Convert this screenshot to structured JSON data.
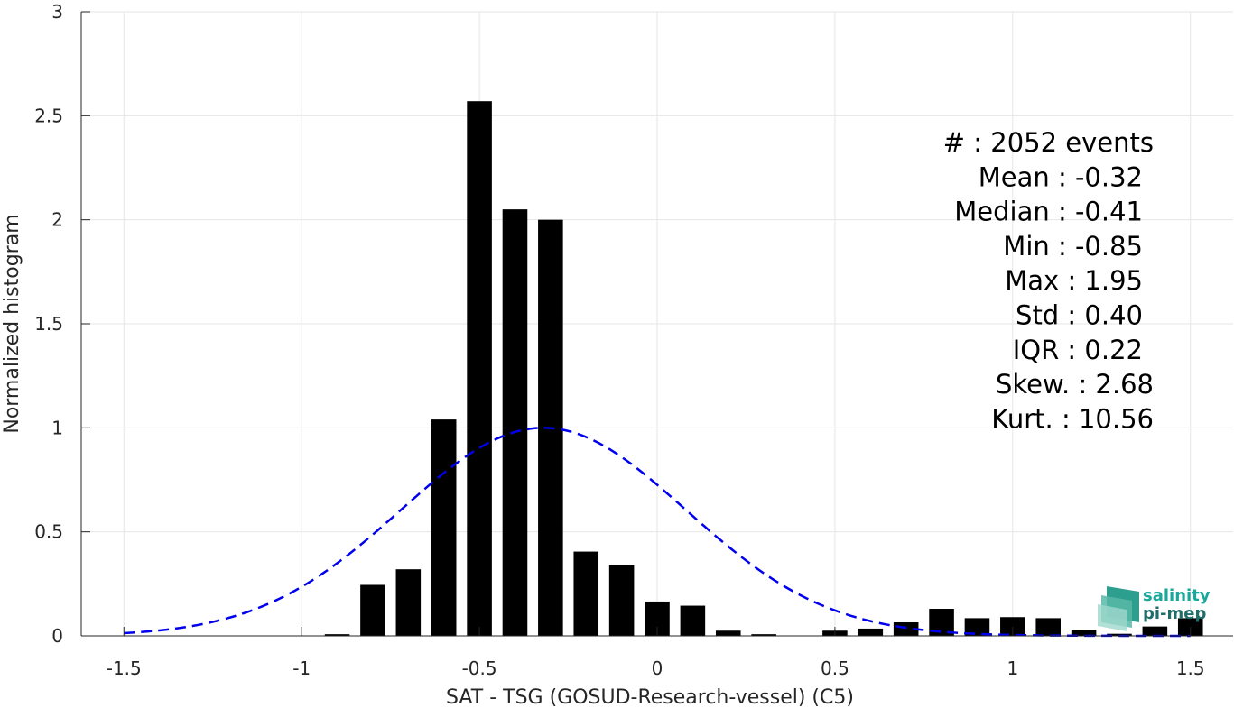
{
  "chart_data": {
    "type": "bar",
    "xlabel": "SAT - TSG (GOSUD-Research-vessel) (C5)",
    "ylabel": "Normalized histogram",
    "xlim": [
      -1.62,
      1.62
    ],
    "ylim": [
      0,
      3
    ],
    "xticks": [
      -1.5,
      -1,
      -0.5,
      0,
      0.5,
      1,
      1.5
    ],
    "xtick_labels": [
      "-1.5",
      "-1",
      "-0.5",
      "0",
      "0.5",
      "1",
      "1.5"
    ],
    "yticks": [
      0,
      0.5,
      1,
      1.5,
      2,
      2.5,
      3
    ],
    "ytick_labels": [
      "0",
      "0.5",
      "1",
      "1.5",
      "2",
      "2.5",
      "3"
    ],
    "grid": true,
    "bar_width": 0.07,
    "bar_color": "#000000",
    "bins": [
      {
        "x": -0.9,
        "y": 0.008
      },
      {
        "x": -0.8,
        "y": 0.245
      },
      {
        "x": -0.7,
        "y": 0.32
      },
      {
        "x": -0.6,
        "y": 1.04
      },
      {
        "x": -0.5,
        "y": 2.57
      },
      {
        "x": -0.4,
        "y": 2.05
      },
      {
        "x": -0.3,
        "y": 2.0
      },
      {
        "x": -0.2,
        "y": 0.405
      },
      {
        "x": -0.1,
        "y": 0.34
      },
      {
        "x": 0.0,
        "y": 0.165
      },
      {
        "x": 0.1,
        "y": 0.145
      },
      {
        "x": 0.2,
        "y": 0.025
      },
      {
        "x": 0.3,
        "y": 0.008
      },
      {
        "x": 0.5,
        "y": 0.025
      },
      {
        "x": 0.6,
        "y": 0.035
      },
      {
        "x": 0.7,
        "y": 0.065
      },
      {
        "x": 0.8,
        "y": 0.13
      },
      {
        "x": 0.9,
        "y": 0.085
      },
      {
        "x": 1.0,
        "y": 0.09
      },
      {
        "x": 1.1,
        "y": 0.085
      },
      {
        "x": 1.2,
        "y": 0.03
      },
      {
        "x": 1.3,
        "y": 0.01
      },
      {
        "x": 1.4,
        "y": 0.045
      },
      {
        "x": 1.5,
        "y": 0.085
      }
    ],
    "fit_curve": {
      "style": "dashed",
      "color": "#0000ee",
      "mean": -0.32,
      "std": 0.4,
      "peak": 1.0,
      "x_range": [
        -1.5,
        1.5
      ]
    },
    "stats_lines": [
      "#  : 2052 events",
      "Mean : -0.32",
      "Median : -0.41",
      "Min : -0.85",
      "Max : 1.95",
      "Std : 0.40",
      "IQR : 0.22",
      "Skew. : 2.68",
      "Kurt. : 10.56"
    ]
  },
  "logo": {
    "line1": "salinity",
    "line2": "pi-mep",
    "color1": "#1aa89a",
    "color2": "#1f6e6a"
  }
}
